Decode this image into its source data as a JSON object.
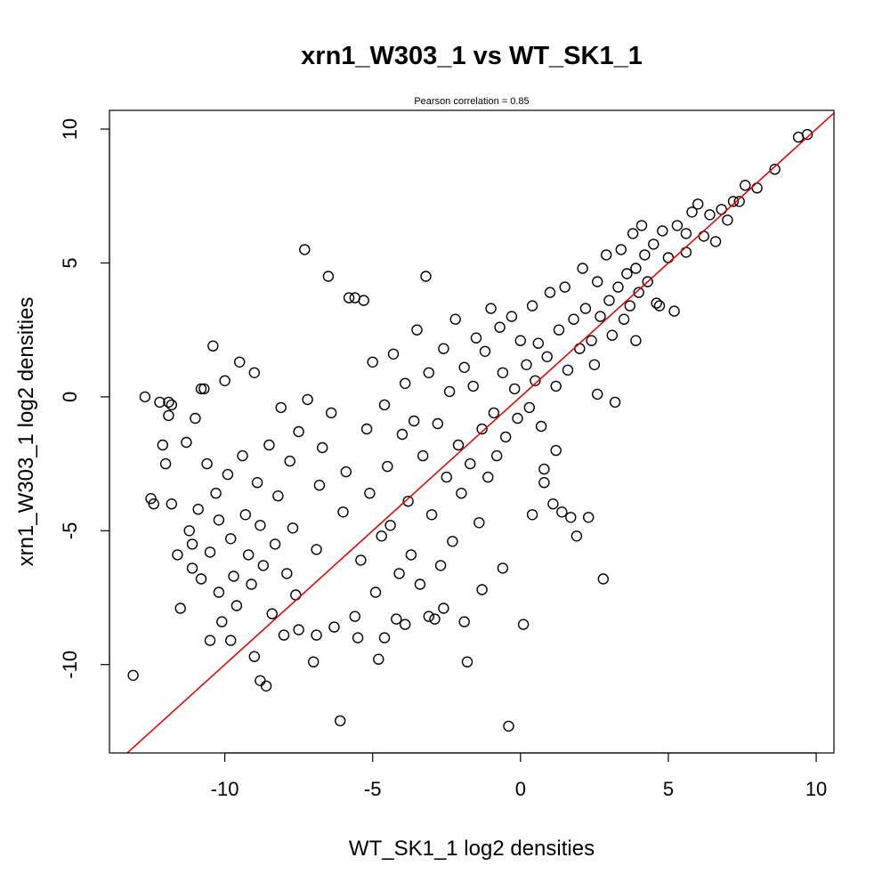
{
  "chart_data": {
    "type": "scatter",
    "title": "xrn1_W303_1 vs WT_SK1_1",
    "subtitle": "Pearson correlation =  0.85",
    "xlabel": "WT_SK1_1 log2 densities",
    "ylabel": "xrn1_W303_1 log2 densities",
    "xlim": [
      -13.9,
      10.6
    ],
    "ylim": [
      -13.3,
      10.7
    ],
    "xticks": [
      -10,
      -5,
      0,
      5,
      10
    ],
    "yticks": [
      -10,
      -5,
      0,
      5,
      10
    ],
    "xtick_labels": [
      "-10",
      "-5",
      "0",
      "5",
      "10"
    ],
    "ytick_labels": [
      "-10",
      "-5",
      "0",
      "5",
      "10"
    ],
    "grid": false,
    "legend": "none",
    "marker": "open-circle",
    "point_color": "#000000",
    "fit_line": {
      "slope": 1.0,
      "intercept": 0.0,
      "color": "#e00000"
    },
    "points": [
      [
        -13.1,
        -10.4
      ],
      [
        -12.7,
        0.0
      ],
      [
        -12.5,
        -3.8
      ],
      [
        -12.4,
        -4.0
      ],
      [
        -12.2,
        -0.2
      ],
      [
        -12.1,
        -1.8
      ],
      [
        -12.0,
        -2.5
      ],
      [
        -11.9,
        -0.7
      ],
      [
        -11.8,
        -0.3
      ],
      [
        -11.8,
        -4.0
      ],
      [
        -11.6,
        -5.9
      ],
      [
        -11.5,
        -7.9
      ],
      [
        -11.3,
        -1.7
      ],
      [
        -11.2,
        -5.0
      ],
      [
        -11.1,
        -5.5
      ],
      [
        -11.1,
        -6.4
      ],
      [
        -11.0,
        -0.8
      ],
      [
        -10.9,
        -4.2
      ],
      [
        -10.8,
        -6.8
      ],
      [
        -10.7,
        0.3
      ],
      [
        -10.6,
        -2.5
      ],
      [
        -10.5,
        -5.8
      ],
      [
        -10.5,
        -9.1
      ],
      [
        -10.4,
        1.9
      ],
      [
        -10.3,
        -3.6
      ],
      [
        -10.2,
        -4.6
      ],
      [
        -10.2,
        -7.3
      ],
      [
        -10.1,
        -8.4
      ],
      [
        -10.0,
        0.6
      ],
      [
        -9.9,
        -2.9
      ],
      [
        -9.8,
        -5.3
      ],
      [
        -9.7,
        -6.7
      ],
      [
        -9.6,
        -7.8
      ],
      [
        -9.5,
        1.3
      ],
      [
        -9.4,
        -2.2
      ],
      [
        -9.3,
        -4.4
      ],
      [
        -9.2,
        -5.9
      ],
      [
        -9.1,
        -7.0
      ],
      [
        -9.0,
        0.9
      ],
      [
        -9.0,
        -9.7
      ],
      [
        -8.9,
        -3.2
      ],
      [
        -8.8,
        -4.8
      ],
      [
        -8.7,
        -6.3
      ],
      [
        -8.6,
        -10.8
      ],
      [
        -8.5,
        -1.8
      ],
      [
        -8.4,
        -8.1
      ],
      [
        -8.3,
        -5.5
      ],
      [
        -8.2,
        -3.7
      ],
      [
        -8.1,
        -0.4
      ],
      [
        -8.0,
        -8.9
      ],
      [
        -7.9,
        -6.6
      ],
      [
        -7.8,
        -2.4
      ],
      [
        -7.7,
        -4.9
      ],
      [
        -7.6,
        -7.4
      ],
      [
        -7.5,
        -1.3
      ],
      [
        -7.3,
        5.5
      ],
      [
        -7.2,
        -0.1
      ],
      [
        -7.0,
        -9.9
      ],
      [
        -6.9,
        -5.7
      ],
      [
        -6.8,
        -3.3
      ],
      [
        -6.7,
        -1.9
      ],
      [
        -6.5,
        4.5
      ],
      [
        -6.4,
        -0.6
      ],
      [
        -6.3,
        -8.6
      ],
      [
        -6.1,
        -12.1
      ],
      [
        -6.0,
        -4.3
      ],
      [
        -5.9,
        -2.8
      ],
      [
        -5.8,
        3.7
      ],
      [
        -5.6,
        3.7
      ],
      [
        -5.5,
        -9.0
      ],
      [
        -5.4,
        -6.1
      ],
      [
        -5.3,
        3.6
      ],
      [
        -5.2,
        -1.2
      ],
      [
        -5.1,
        -3.6
      ],
      [
        -5.0,
        1.3
      ],
      [
        -4.9,
        -7.3
      ],
      [
        -4.8,
        -9.8
      ],
      [
        -4.7,
        -5.2
      ],
      [
        -4.6,
        -0.3
      ],
      [
        -4.5,
        -2.6
      ],
      [
        -4.4,
        -4.8
      ],
      [
        -4.3,
        1.6
      ],
      [
        -4.2,
        -8.3
      ],
      [
        -4.1,
        -6.6
      ],
      [
        -4.0,
        -1.4
      ],
      [
        -3.9,
        0.5
      ],
      [
        -3.8,
        -3.9
      ],
      [
        -3.7,
        -5.9
      ],
      [
        -3.6,
        -0.9
      ],
      [
        -3.5,
        2.5
      ],
      [
        -3.4,
        -7.0
      ],
      [
        -3.3,
        -2.2
      ],
      [
        -3.2,
        4.5
      ],
      [
        -3.1,
        0.9
      ],
      [
        -3.0,
        -4.4
      ],
      [
        -2.9,
        -8.3
      ],
      [
        -2.8,
        -1.0
      ],
      [
        -2.7,
        -6.3
      ],
      [
        -2.6,
        1.8
      ],
      [
        -2.5,
        -3.0
      ],
      [
        -2.4,
        0.2
      ],
      [
        -2.3,
        -5.4
      ],
      [
        -2.2,
        2.9
      ],
      [
        -2.1,
        -1.8
      ],
      [
        -2.0,
        -3.6
      ],
      [
        -1.9,
        1.1
      ],
      [
        -1.8,
        -9.9
      ],
      [
        -1.7,
        -2.5
      ],
      [
        -1.6,
        0.4
      ],
      [
        -1.5,
        2.2
      ],
      [
        -1.4,
        -4.7
      ],
      [
        -1.3,
        -1.2
      ],
      [
        -1.2,
        1.7
      ],
      [
        -1.1,
        -3.0
      ],
      [
        -1.0,
        3.3
      ],
      [
        -0.9,
        -0.6
      ],
      [
        -0.8,
        -2.2
      ],
      [
        -0.7,
        2.6
      ],
      [
        -0.6,
        0.9
      ],
      [
        -0.5,
        -1.5
      ],
      [
        -0.4,
        -12.3
      ],
      [
        -0.3,
        3.0
      ],
      [
        -0.2,
        0.3
      ],
      [
        -0.1,
        -0.8
      ],
      [
        0.0,
        2.1
      ],
      [
        0.1,
        -8.5
      ],
      [
        0.2,
        1.2
      ],
      [
        0.3,
        -0.4
      ],
      [
        0.4,
        3.4
      ],
      [
        0.5,
        0.6
      ],
      [
        0.6,
        2.0
      ],
      [
        0.7,
        -1.1
      ],
      [
        0.8,
        -2.7
      ],
      [
        0.9,
        1.5
      ],
      [
        1.0,
        3.9
      ],
      [
        1.1,
        -4.0
      ],
      [
        1.2,
        0.4
      ],
      [
        1.3,
        2.5
      ],
      [
        1.4,
        -4.3
      ],
      [
        1.5,
        4.1
      ],
      [
        1.6,
        1.0
      ],
      [
        1.7,
        -4.5
      ],
      [
        1.8,
        2.9
      ],
      [
        1.9,
        -5.2
      ],
      [
        2.0,
        1.8
      ],
      [
        2.1,
        4.8
      ],
      [
        2.2,
        3.3
      ],
      [
        2.3,
        -4.5
      ],
      [
        2.4,
        2.1
      ],
      [
        2.5,
        1.2
      ],
      [
        2.6,
        4.3
      ],
      [
        2.7,
        3.0
      ],
      [
        2.8,
        -6.8
      ],
      [
        2.9,
        5.3
      ],
      [
        3.0,
        3.6
      ],
      [
        3.1,
        2.3
      ],
      [
        3.2,
        -0.2
      ],
      [
        3.3,
        4.1
      ],
      [
        3.4,
        5.5
      ],
      [
        3.5,
        2.9
      ],
      [
        3.6,
        4.6
      ],
      [
        3.7,
        3.4
      ],
      [
        3.8,
        6.1
      ],
      [
        3.9,
        4.8
      ],
      [
        4.0,
        3.9
      ],
      [
        4.1,
        6.4
      ],
      [
        4.2,
        5.3
      ],
      [
        4.3,
        4.3
      ],
      [
        4.5,
        5.7
      ],
      [
        4.7,
        3.4
      ],
      [
        4.8,
        6.2
      ],
      [
        5.0,
        5.2
      ],
      [
        5.2,
        3.2
      ],
      [
        5.3,
        6.4
      ],
      [
        5.6,
        6.1
      ],
      [
        5.8,
        6.9
      ],
      [
        6.0,
        7.2
      ],
      [
        6.2,
        6.0
      ],
      [
        6.4,
        6.8
      ],
      [
        6.6,
        5.8
      ],
      [
        6.8,
        7.0
      ],
      [
        7.0,
        6.6
      ],
      [
        7.2,
        7.3
      ],
      [
        7.4,
        7.3
      ],
      [
        7.6,
        7.9
      ],
      [
        8.0,
        7.8
      ],
      [
        8.6,
        8.5
      ],
      [
        9.4,
        9.7
      ],
      [
        9.7,
        9.8
      ],
      [
        -11.9,
        -0.2
      ],
      [
        -10.8,
        0.3
      ],
      [
        -9.8,
        -9.1
      ],
      [
        -8.8,
        -10.6
      ],
      [
        -7.5,
        -8.7
      ],
      [
        -6.9,
        -8.9
      ],
      [
        -5.6,
        -8.2
      ],
      [
        -4.6,
        -9.0
      ],
      [
        -3.9,
        -8.5
      ],
      [
        -3.1,
        -8.2
      ],
      [
        -2.6,
        -7.9
      ],
      [
        -1.9,
        -8.4
      ],
      [
        -1.3,
        -7.2
      ],
      [
        -0.6,
        -6.4
      ],
      [
        0.4,
        -4.4
      ],
      [
        0.8,
        -3.2
      ],
      [
        1.2,
        -2.0
      ],
      [
        2.6,
        0.1
      ],
      [
        3.9,
        2.1
      ],
      [
        4.6,
        3.5
      ],
      [
        5.6,
        5.4
      ]
    ]
  }
}
